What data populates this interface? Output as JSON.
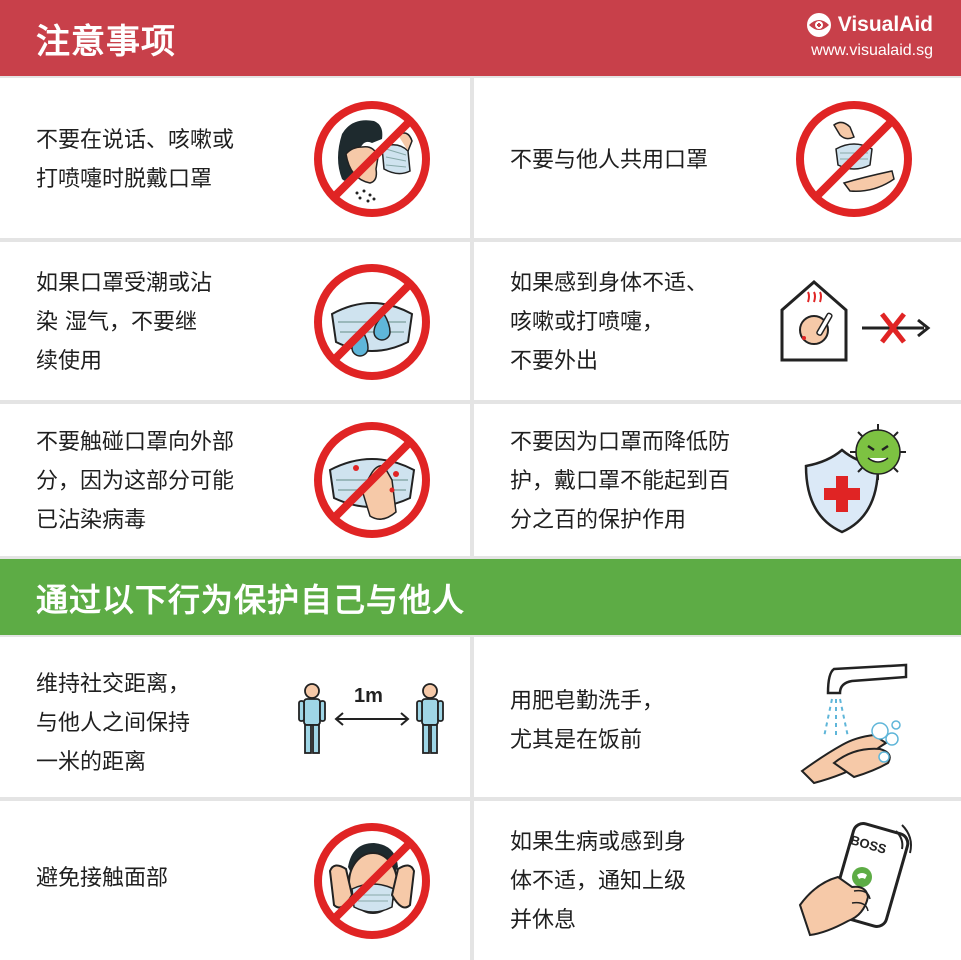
{
  "header": {
    "title": "注意事项",
    "brand": "VisualAid",
    "url": "www.visualaid.sg"
  },
  "section2": {
    "title": "通过以下行为保护自己与他人"
  },
  "donts": [
    {
      "lines": [
        "不要在说话、咳嗽或",
        "打喷嚏时脱戴口罩"
      ],
      "icon": "no-removing-mask-icon"
    },
    {
      "lines": [
        "不要与他人共用口罩"
      ],
      "icon": "no-sharing-mask-icon"
    },
    {
      "lines": [
        "如果口罩受潮或沾",
        "染 湿气，不要继",
        "续使用"
      ],
      "icon": "no-wet-mask-icon"
    },
    {
      "lines": [
        "如果感到身体不适、",
        "咳嗽或打喷嚏，",
        "不要外出"
      ],
      "icon": "stay-home-sick-icon"
    },
    {
      "lines": [
        "不要触碰口罩向外部",
        "分，因为这部分可能",
        "已沾染病毒"
      ],
      "icon": "no-touching-mask-icon"
    },
    {
      "lines": [
        "不要因为口罩而降低防",
        "护，戴口罩不能起到百",
        "分之百的保护作用"
      ],
      "icon": "shield-virus-icon"
    }
  ],
  "dos": [
    {
      "lines": [
        "维持社交距离，",
        "与他人之间保持",
        "一米的距离"
      ],
      "icon": "social-distance-icon",
      "distance_label": "1m"
    },
    {
      "lines": [
        "用肥皂勤洗手，",
        "尤其是在饭前"
      ],
      "icon": "hand-washing-icon"
    },
    {
      "lines": [
        "避免接触面部"
      ],
      "icon": "no-touching-face-icon"
    },
    {
      "lines": [
        "如果生病或感到身",
        "体不适，通知上级",
        "并休息"
      ],
      "icon": "phone-call-boss-icon",
      "phone_label": "BOSS"
    }
  ],
  "colors": {
    "red": "#c8404a",
    "green": "#5dac45",
    "prohibit": "#e02424",
    "gap": "#e4e4e4"
  }
}
